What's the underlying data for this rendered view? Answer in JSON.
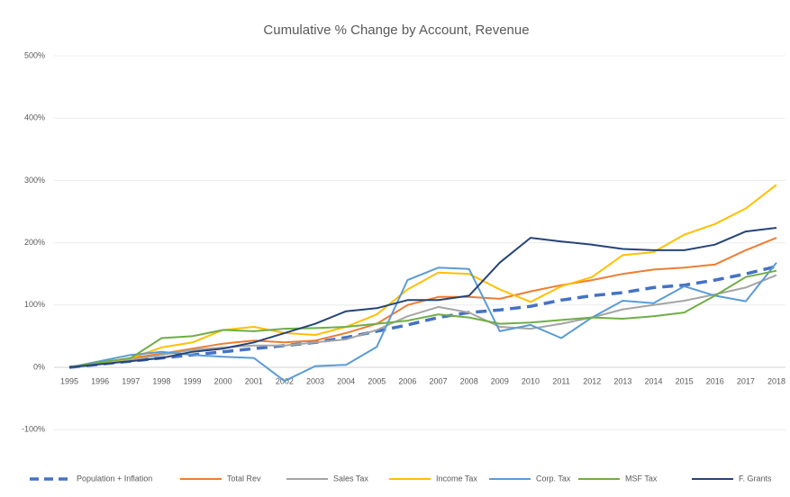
{
  "chart_data": {
    "type": "line",
    "title": "Cumulative % Change by Account, Revenue",
    "categories": [
      "1995",
      "1996",
      "1997",
      "1998",
      "1999",
      "2000",
      "2001",
      "2002",
      "2003",
      "2004",
      "2005",
      "2006",
      "2007",
      "2008",
      "2009",
      "2010",
      "2011",
      "2012",
      "2013",
      "2014",
      "2015",
      "2016",
      "2017",
      "2018"
    ],
    "ylim": [
      -150,
      500
    ],
    "yticks": [
      {
        "value": -100,
        "label": "-100%"
      },
      {
        "value": 0,
        "label": "0%"
      },
      {
        "value": 100,
        "label": "100%"
      },
      {
        "value": 200,
        "label": "200%"
      },
      {
        "value": 300,
        "label": "300%"
      },
      {
        "value": 400,
        "label": "400%"
      },
      {
        "value": 500,
        "label": "500%"
      }
    ],
    "grid": true,
    "legend": "bottom",
    "series": [
      {
        "name": "Population + Inflation",
        "color": "#4472c4",
        "dashed": true,
        "values": [
          0,
          5,
          10,
          15,
          20,
          25,
          30,
          35,
          40,
          48,
          58,
          68,
          80,
          88,
          92,
          98,
          108,
          115,
          120,
          128,
          132,
          140,
          150,
          162
        ]
      },
      {
        "name": "Total Rev",
        "color": "#ed7d31",
        "values": [
          0,
          6,
          15,
          22,
          30,
          38,
          43,
          40,
          43,
          55,
          70,
          100,
          113,
          113,
          110,
          122,
          132,
          140,
          150,
          157,
          160,
          165,
          188,
          208
        ]
      },
      {
        "name": "Sales Tax",
        "color": "#a5a5a5",
        "values": [
          0,
          5,
          12,
          20,
          28,
          32,
          35,
          35,
          40,
          45,
          60,
          82,
          97,
          88,
          65,
          62,
          70,
          80,
          93,
          100,
          107,
          117,
          128,
          148
        ]
      },
      {
        "name": "Income Tax",
        "color": "#ffc000",
        "values": [
          0,
          7,
          15,
          32,
          40,
          60,
          65,
          55,
          52,
          65,
          85,
          125,
          152,
          150,
          125,
          105,
          130,
          145,
          180,
          185,
          213,
          230,
          255,
          293
        ]
      },
      {
        "name": "Corp. Tax",
        "color": "#5b9bd5",
        "values": [
          0,
          10,
          20,
          25,
          20,
          17,
          15,
          -22,
          2,
          4,
          33,
          140,
          160,
          158,
          58,
          68,
          47,
          80,
          107,
          103,
          130,
          115,
          106,
          168
        ]
      },
      {
        "name": "MSF Tax",
        "color": "#70ad47",
        "values": [
          0,
          8,
          15,
          47,
          50,
          60,
          58,
          62,
          63,
          65,
          70,
          75,
          85,
          80,
          70,
          72,
          76,
          80,
          78,
          82,
          88,
          115,
          145,
          155
        ]
      },
      {
        "name": "F. Grants",
        "color": "#264478",
        "values": [
          0,
          5,
          10,
          15,
          25,
          30,
          40,
          55,
          70,
          90,
          95,
          108,
          108,
          115,
          168,
          208,
          202,
          197,
          190,
          188,
          188,
          197,
          218,
          224
        ]
      }
    ]
  }
}
